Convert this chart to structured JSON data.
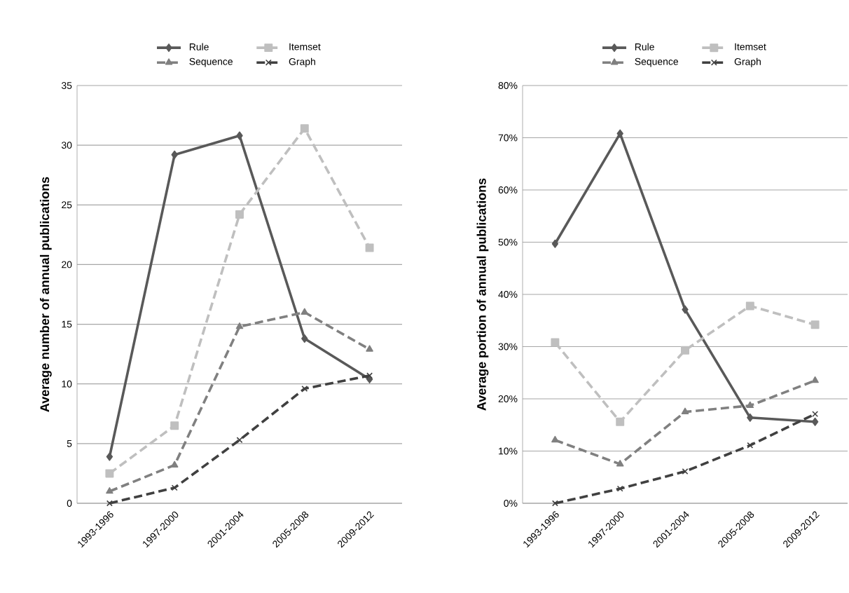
{
  "chart_data": [
    {
      "type": "line",
      "ylabel": "Average number of annual publications",
      "categories": [
        "1993-1996",
        "1997-2000",
        "2001-2004",
        "2005-2008",
        "2009-2012"
      ],
      "series": [
        {
          "name": "Rule",
          "color": "#595959",
          "marker": "diamond",
          "line_style": "solid",
          "values": [
            3.9,
            29.2,
            30.8,
            13.8,
            10.4
          ]
        },
        {
          "name": "Itemset",
          "color": "#bfbfbf",
          "marker": "square",
          "line_style": "dashed",
          "values": [
            2.5,
            6.5,
            24.2,
            31.4,
            21.4
          ]
        },
        {
          "name": "Sequence",
          "color": "#808080",
          "marker": "triangle",
          "line_style": "dashed",
          "values": [
            1.0,
            3.2,
            14.8,
            16.0,
            12.9
          ]
        },
        {
          "name": "Graph",
          "color": "#404040",
          "marker": "cross",
          "line_style": "dashed",
          "values": [
            0,
            1.3,
            5.3,
            9.6,
            10.7
          ]
        }
      ],
      "ylim": [
        0,
        35
      ],
      "yticks": [
        0,
        5,
        10,
        15,
        20,
        25,
        30,
        35
      ],
      "grid": "y",
      "legend": "top"
    },
    {
      "type": "line",
      "ylabel": "Average portion of annual publications",
      "categories": [
        "1993-1996",
        "1997-2000",
        "2001-2004",
        "2005-2008",
        "2009-2012"
      ],
      "series": [
        {
          "name": "Rule",
          "color": "#595959",
          "marker": "diamond",
          "line_style": "solid",
          "values": [
            49.7,
            70.8,
            37.1,
            16.4,
            15.6
          ]
        },
        {
          "name": "Itemset",
          "color": "#bfbfbf",
          "marker": "square",
          "line_style": "dashed",
          "values": [
            30.8,
            15.6,
            29.3,
            37.8,
            34.2
          ]
        },
        {
          "name": "Sequence",
          "color": "#808080",
          "marker": "triangle",
          "line_style": "dashed",
          "values": [
            12.1,
            7.5,
            17.5,
            18.7,
            23.5
          ]
        },
        {
          "name": "Graph",
          "color": "#404040",
          "marker": "cross",
          "line_style": "dashed",
          "values": [
            0,
            2.8,
            6.1,
            11.1,
            17.1
          ]
        }
      ],
      "ylim": [
        0,
        80
      ],
      "yticks": [
        {
          "value": 0,
          "label": "0%"
        },
        {
          "value": 10,
          "label": "10%"
        },
        {
          "value": 20,
          "label": "20%"
        },
        {
          "value": 30,
          "label": "30%"
        },
        {
          "value": 40,
          "label": "40%"
        },
        {
          "value": 50,
          "label": "50%"
        },
        {
          "value": 60,
          "label": "60%"
        },
        {
          "value": 70,
          "label": "70%"
        },
        {
          "value": 80,
          "label": "80%"
        }
      ],
      "grid": "y",
      "legend": "top"
    }
  ]
}
